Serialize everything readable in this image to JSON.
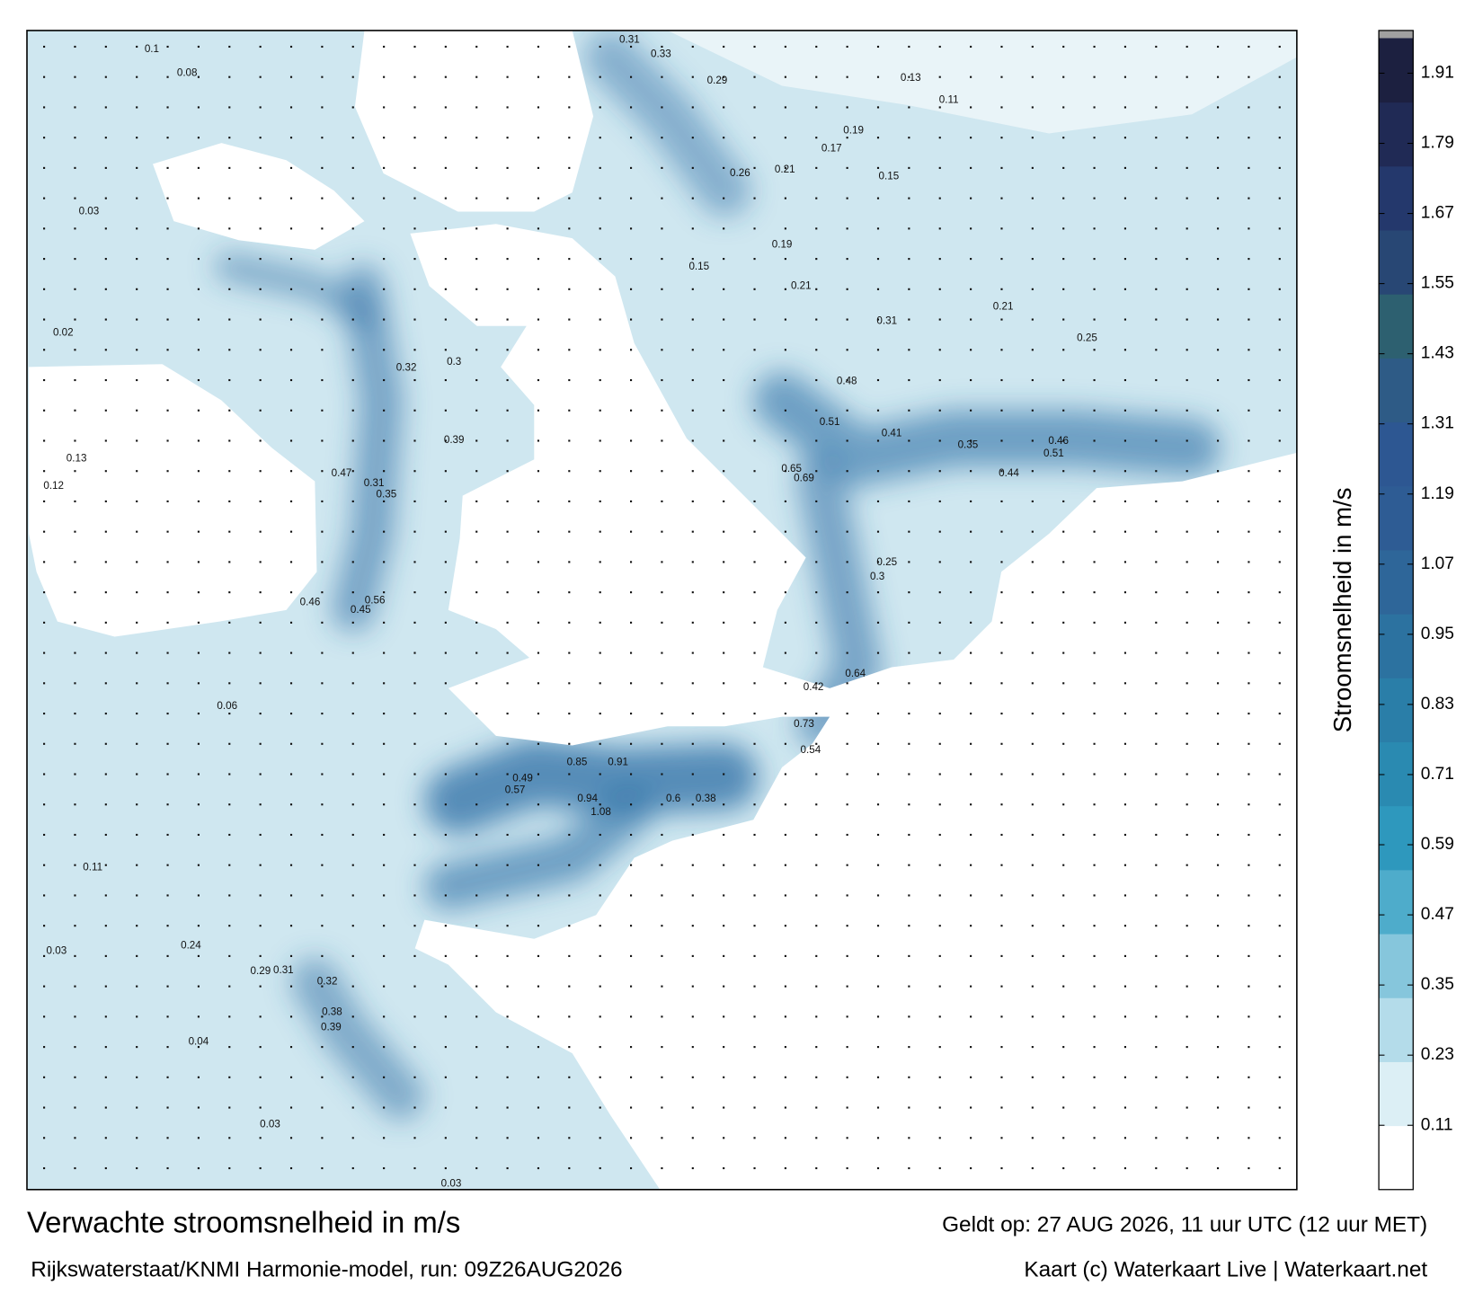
{
  "header": {
    "title": "Verwachte stroomsnelheid in m/s",
    "valid_time": "Geldt op: 27 AUG 2026, 11 uur UTC (12 uur MET)"
  },
  "footer": {
    "model_run": "Rijkswaterstaat/KNMI Harmonie-model, run: 09Z26AUG2026",
    "credit": "Kaart (c) Waterkaart Live | Waterkaart.net"
  },
  "colorbar": {
    "label": "Stroomsnelheid in m/s",
    "lim": [
      0,
      1.97
    ],
    "ticks": [
      0.11,
      0.23,
      0.35,
      0.47,
      0.59,
      0.71,
      0.83,
      0.95,
      1.07,
      1.19,
      1.31,
      1.43,
      1.55,
      1.67,
      1.79,
      1.91
    ],
    "colormap": [
      "#ffffff",
      "#dceff5",
      "#b4dcea",
      "#86c6dc",
      "#4eaccb",
      "#2e98bd",
      "#2a8ab1",
      "#2a7ea8",
      "#2c72a0",
      "#2e6699",
      "#2e5c94",
      "#2d5792",
      "#2e5b86",
      "#2d6070",
      "#284774",
      "#24386c",
      "#202a55",
      "#1c2040"
    ],
    "cap_color": "#a0a0a0"
  },
  "map": {
    "land_color": "#ffffff",
    "sea_color": "#cfe7f0",
    "channel_color": "#2f6fa6",
    "labels": [
      0.31,
      0.33,
      0.29,
      0.13,
      0.11,
      0.19,
      0.15,
      0.21,
      0.26,
      0.17,
      0.19,
      0.15,
      0.21,
      0.25,
      0.21,
      0.31,
      0.48,
      0.51,
      0.69,
      0.65,
      0.41,
      0.35,
      0.46,
      0.51,
      0.44,
      0.3,
      0.25,
      0.64,
      0.42,
      0.73,
      0.54,
      0.91,
      0.94,
      1.08,
      0.85,
      0.6,
      0.38,
      0.49,
      0.57,
      0.56,
      0.45,
      0.46,
      0.47,
      0.35,
      0.31,
      0.32,
      0.39,
      0.3,
      0.38,
      0.39,
      0.32,
      0.31,
      0.29,
      0.24,
      0.06,
      0.11,
      0.03,
      0.04,
      0.03,
      0.03,
      0.1,
      0.08,
      0.03,
      0.02,
      0.12,
      0.13
    ]
  }
}
